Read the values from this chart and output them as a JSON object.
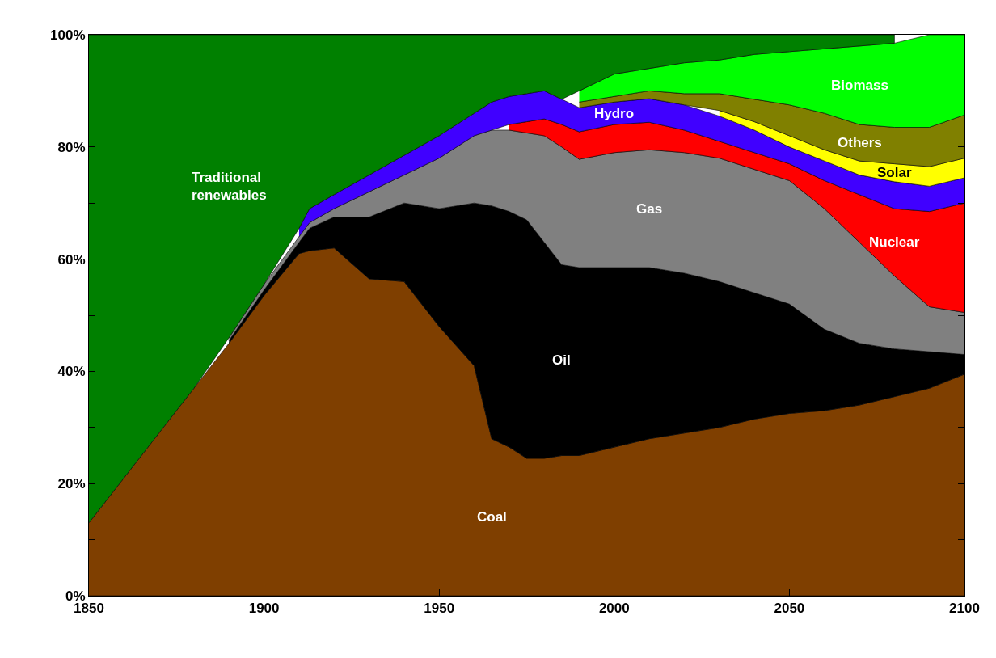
{
  "chart_data": {
    "type": "area",
    "stacked": true,
    "x": [
      1850,
      1870,
      1880,
      1890,
      1900,
      1910,
      1913,
      1920,
      1930,
      1940,
      1950,
      1960,
      1965,
      1970,
      1975,
      1980,
      1985,
      1990,
      2000,
      2010,
      2020,
      2030,
      2040,
      2050,
      2060,
      2070,
      2080,
      2090,
      2100
    ],
    "series": [
      {
        "name": "Coal",
        "color": "#7f3f00",
        "values": [
          13,
          29,
          37,
          45,
          53.5,
          61,
          61.5,
          62,
          56.5,
          56,
          48,
          41,
          28,
          26.5,
          24.5,
          24.5,
          25,
          25,
          26.5,
          28,
          29,
          30,
          31.5,
          32.5,
          33,
          34,
          35.5,
          37,
          39.5
        ]
      },
      {
        "name": "Oil",
        "color": "#000000",
        "values": [
          null,
          null,
          null,
          0.5,
          1,
          2,
          4,
          5.5,
          11,
          14,
          21,
          29,
          41.5,
          42,
          42.5,
          38.5,
          34,
          33.5,
          32,
          30.5,
          28.5,
          26,
          22.5,
          19.5,
          14.5,
          11,
          8.5,
          6.5,
          3.5
        ]
      },
      {
        "name": "Gas",
        "color": "#808080",
        "values": [
          null,
          null,
          null,
          0.5,
          1,
          1,
          1,
          1.5,
          4.5,
          5,
          9,
          12,
          13.5,
          14.5,
          15.5,
          19,
          21,
          19.3,
          20.5,
          21,
          21.5,
          22,
          22,
          22,
          21.5,
          18,
          13,
          8,
          7.5
        ]
      },
      {
        "name": "Nuclear",
        "color": "#ff0000",
        "values": [
          null,
          null,
          null,
          null,
          null,
          null,
          null,
          null,
          null,
          null,
          null,
          null,
          null,
          1,
          2,
          3,
          4,
          4.9,
          5,
          4.9,
          4,
          3,
          3,
          3,
          5,
          8.5,
          12,
          17,
          19.5
        ]
      },
      {
        "name": "Hydro",
        "color": "#4000ff",
        "values": [
          null,
          null,
          null,
          null,
          null,
          1.5,
          2.5,
          2.5,
          3,
          3.5,
          4,
          4,
          5,
          5,
          5,
          5,
          4.5,
          4.3,
          4,
          4.2,
          4.5,
          4.5,
          4,
          3,
          3.5,
          3.5,
          4.8,
          4.5,
          4.5
        ]
      },
      {
        "name": "Solar",
        "color": "#ffff00",
        "values": [
          null,
          null,
          null,
          null,
          null,
          null,
          null,
          null,
          null,
          null,
          null,
          null,
          null,
          null,
          null,
          null,
          null,
          null,
          null,
          null,
          null,
          1,
          1.5,
          2,
          2,
          2.5,
          3.2,
          3.5,
          3.5
        ]
      },
      {
        "name": "Others",
        "color": "#808000",
        "values": [
          null,
          null,
          null,
          null,
          null,
          null,
          null,
          null,
          null,
          null,
          null,
          null,
          null,
          null,
          null,
          null,
          null,
          1,
          1,
          1.4,
          2,
          3,
          4,
          5.5,
          6.5,
          6.5,
          6.5,
          7,
          7.7
        ]
      },
      {
        "name": "Biomass",
        "color": "#00ff00",
        "values": [
          null,
          null,
          null,
          null,
          null,
          null,
          null,
          null,
          null,
          null,
          null,
          null,
          null,
          null,
          null,
          null,
          null,
          2,
          4,
          4,
          5.5,
          6,
          8,
          9.5,
          11.5,
          14,
          15,
          16.5,
          14.3
        ]
      },
      {
        "name": "Traditional renewables",
        "color": "#008000",
        "values": [
          87,
          71,
          63,
          54,
          44.5,
          34.5,
          31,
          28.5,
          25,
          21.5,
          18,
          14,
          12,
          11,
          10.5,
          10,
          11.5,
          10,
          7,
          6,
          5,
          4.5,
          3.5,
          3,
          2.5,
          2,
          1.5,
          null,
          null
        ]
      }
    ],
    "xlim": [
      1850,
      2100
    ],
    "xticks": [
      1850,
      1900,
      1950,
      2000,
      2050,
      2100
    ],
    "ylim": [
      0,
      100
    ],
    "yticks": [
      {
        "value": 0,
        "label": "0%"
      },
      {
        "value": 10,
        "label": null
      },
      {
        "value": 20,
        "label": "20%"
      },
      {
        "value": 30,
        "label": null
      },
      {
        "value": 40,
        "label": "40%"
      },
      {
        "value": 50,
        "label": null
      },
      {
        "value": 60,
        "label": "60%"
      },
      {
        "value": 70,
        "label": null
      },
      {
        "value": 80,
        "label": "80%"
      },
      {
        "value": 90,
        "label": null
      },
      {
        "value": 100,
        "label": "100%"
      }
    ],
    "legend": false
  }
}
